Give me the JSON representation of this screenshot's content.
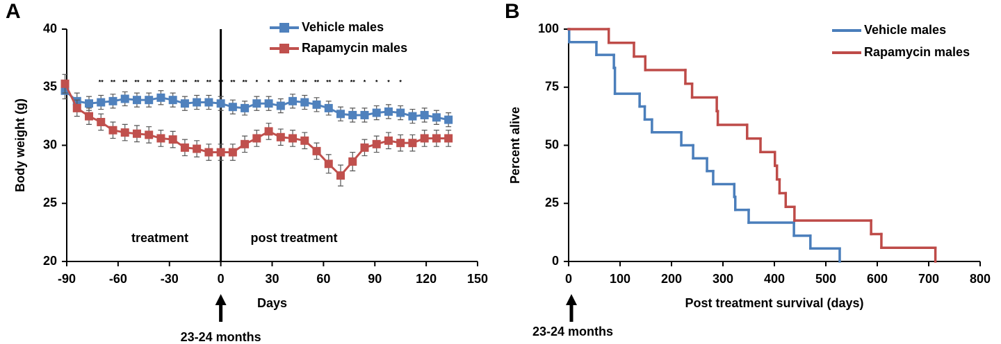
{
  "chart_data": [
    {
      "type": "line",
      "panel": "A",
      "xlabel": "Days",
      "ylabel": "Body weight (g)",
      "xlim": [
        -90,
        150
      ],
      "xticks": [
        -90,
        -60,
        -30,
        0,
        30,
        60,
        90,
        120,
        150
      ],
      "ylim": [
        20,
        40
      ],
      "yticks": [
        20,
        25,
        30,
        35,
        40
      ],
      "x": [
        -91,
        -84,
        -77,
        -70,
        -63,
        -56,
        -49,
        -42,
        -35,
        -28,
        -21,
        -14,
        -7,
        0,
        7,
        14,
        21,
        28,
        35,
        42,
        49,
        56,
        63,
        70,
        77,
        84,
        91,
        98,
        105,
        112,
        119,
        126,
        133
      ],
      "series": [
        {
          "name": "Vehicle males",
          "color": "#4f81bd",
          "values": [
            34.7,
            33.8,
            33.6,
            33.7,
            33.8,
            34.0,
            33.9,
            33.9,
            34.1,
            33.9,
            33.6,
            33.7,
            33.7,
            33.6,
            33.3,
            33.2,
            33.6,
            33.6,
            33.4,
            33.8,
            33.7,
            33.5,
            33.2,
            32.7,
            32.6,
            32.6,
            32.8,
            32.9,
            32.8,
            32.5,
            32.6,
            32.4,
            32.2
          ],
          "errors": [
            0.7,
            0.7,
            0.6,
            0.6,
            0.6,
            0.6,
            0.6,
            0.6,
            0.6,
            0.6,
            0.6,
            0.6,
            0.6,
            0.6,
            0.6,
            0.6,
            0.6,
            0.6,
            0.6,
            0.6,
            0.6,
            0.6,
            0.6,
            0.6,
            0.6,
            0.6,
            0.6,
            0.6,
            0.6,
            0.6,
            0.6,
            0.6,
            0.6
          ]
        },
        {
          "name": "Rapamycin males",
          "color": "#c0504d",
          "values": [
            35.3,
            33.2,
            32.5,
            32.0,
            31.3,
            31.1,
            31.0,
            30.9,
            30.6,
            30.5,
            29.8,
            29.7,
            29.4,
            29.4,
            29.4,
            30.1,
            30.6,
            31.2,
            30.7,
            30.6,
            30.4,
            29.5,
            28.4,
            27.4,
            28.6,
            29.8,
            30.1,
            30.4,
            30.2,
            30.2,
            30.6,
            30.6,
            30.6
          ],
          "errors": [
            0.8,
            0.7,
            0.7,
            0.7,
            0.7,
            0.7,
            0.7,
            0.7,
            0.7,
            0.7,
            0.7,
            0.7,
            0.7,
            0.7,
            0.7,
            0.7,
            0.7,
            0.7,
            0.7,
            0.7,
            0.7,
            0.7,
            0.8,
            0.9,
            0.8,
            0.7,
            0.7,
            0.7,
            0.7,
            0.7,
            0.7,
            0.7,
            0.7
          ]
        }
      ],
      "vline": 0,
      "regions": [
        "treatment",
        "post treatment"
      ],
      "significance": {
        "x": [
          -70,
          -63,
          -56,
          -49,
          -42,
          -35,
          -28,
          -21,
          -14,
          -7,
          0,
          7,
          14,
          21,
          28,
          35,
          42,
          49,
          56,
          63,
          70,
          77,
          84,
          91,
          98,
          105
        ],
        "labels": [
          "**",
          "**",
          "**",
          "**",
          "**",
          "**",
          "**",
          "**",
          "**",
          "**",
          "**",
          "**",
          "**",
          "*",
          "*",
          "**",
          "**",
          "**",
          "**",
          "**",
          "**",
          "**",
          "*",
          "*",
          "*",
          "*"
        ]
      },
      "annotation": {
        "text": "23-24 months",
        "x": 0
      }
    },
    {
      "type": "step",
      "panel": "B",
      "xlabel": "Post treatment survival (days)",
      "ylabel": "Percent alive",
      "xlim": [
        0,
        800
      ],
      "xticks": [
        0,
        100,
        200,
        300,
        400,
        500,
        600,
        700,
        800
      ],
      "ylim": [
        0,
        100
      ],
      "yticks": [
        0,
        25,
        50,
        75,
        100
      ],
      "series": [
        {
          "name": "Vehicle males",
          "color": "#4a7ebb",
          "x": [
            0,
            1,
            54,
            88,
            90,
            138,
            148,
            162,
            219,
            242,
            269,
            281,
            322,
            324,
            350,
            438,
            470,
            527
          ],
          "values": [
            100,
            94.4,
            88.9,
            83.3,
            72.2,
            66.7,
            61.1,
            55.6,
            50,
            44.4,
            38.9,
            33.3,
            27.8,
            22.2,
            16.7,
            11.1,
            5.6,
            0
          ]
        },
        {
          "name": "Rapamycin males",
          "color": "#be4b48",
          "x": [
            0,
            78,
            127,
            149,
            227,
            240,
            288,
            290,
            347,
            373,
            401,
            405,
            410,
            422,
            439,
            588,
            608,
            713
          ],
          "values": [
            100,
            94.1,
            88.2,
            82.4,
            76.5,
            70.6,
            64.7,
            58.8,
            52.9,
            47.1,
            41.2,
            35.3,
            29.4,
            23.5,
            17.6,
            11.8,
            5.9,
            0
          ]
        }
      ],
      "annotation": {
        "text": "23-24 months",
        "x": 0
      }
    }
  ]
}
